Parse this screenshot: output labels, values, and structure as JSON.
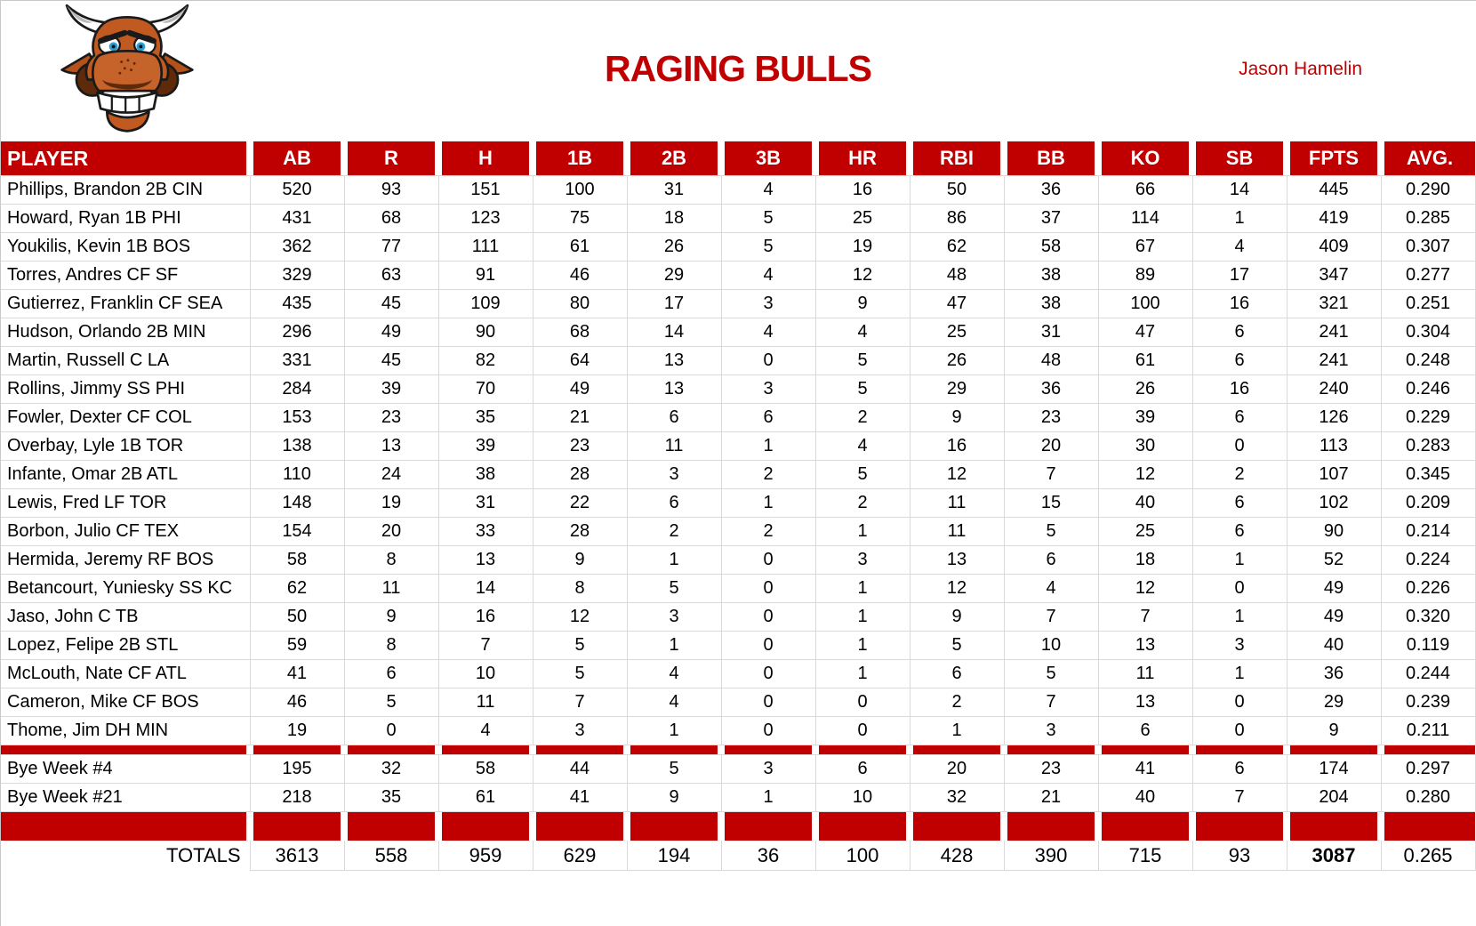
{
  "header": {
    "title": "RAGING BULLS",
    "owner": "Jason Hamelin"
  },
  "colors": {
    "accent_red": "#C00000",
    "grid_gray": "#D9D9D9",
    "header_text": "#FFFFFF"
  },
  "chart_data": {
    "type": "table",
    "title": "RAGING BULLS fantasy baseball team batting statistics"
  },
  "table": {
    "columns": [
      "PLAYER",
      "AB",
      "R",
      "H",
      "1B",
      "2B",
      "3B",
      "HR",
      "RBI",
      "BB",
      "KO",
      "SB",
      "FPTS",
      "AVG."
    ],
    "players": [
      {
        "name": "Phillips, Brandon 2B CIN",
        "stats": [
          "520",
          "93",
          "151",
          "100",
          "31",
          "4",
          "16",
          "50",
          "36",
          "66",
          "14",
          "445",
          "0.290"
        ]
      },
      {
        "name": "Howard, Ryan 1B PHI",
        "stats": [
          "431",
          "68",
          "123",
          "75",
          "18",
          "5",
          "25",
          "86",
          "37",
          "114",
          "1",
          "419",
          "0.285"
        ]
      },
      {
        "name": "Youkilis, Kevin 1B BOS",
        "stats": [
          "362",
          "77",
          "111",
          "61",
          "26",
          "5",
          "19",
          "62",
          "58",
          "67",
          "4",
          "409",
          "0.307"
        ]
      },
      {
        "name": "Torres, Andres CF SF",
        "stats": [
          "329",
          "63",
          "91",
          "46",
          "29",
          "4",
          "12",
          "48",
          "38",
          "89",
          "17",
          "347",
          "0.277"
        ]
      },
      {
        "name": "Gutierrez, Franklin CF SEA",
        "stats": [
          "435",
          "45",
          "109",
          "80",
          "17",
          "3",
          "9",
          "47",
          "38",
          "100",
          "16",
          "321",
          "0.251"
        ]
      },
      {
        "name": "Hudson, Orlando 2B MIN",
        "stats": [
          "296",
          "49",
          "90",
          "68",
          "14",
          "4",
          "4",
          "25",
          "31",
          "47",
          "6",
          "241",
          "0.304"
        ]
      },
      {
        "name": "Martin, Russell C LA",
        "stats": [
          "331",
          "45",
          "82",
          "64",
          "13",
          "0",
          "5",
          "26",
          "48",
          "61",
          "6",
          "241",
          "0.248"
        ]
      },
      {
        "name": "Rollins, Jimmy SS PHI",
        "stats": [
          "284",
          "39",
          "70",
          "49",
          "13",
          "3",
          "5",
          "29",
          "36",
          "26",
          "16",
          "240",
          "0.246"
        ]
      },
      {
        "name": "Fowler, Dexter CF COL",
        "stats": [
          "153",
          "23",
          "35",
          "21",
          "6",
          "6",
          "2",
          "9",
          "23",
          "39",
          "6",
          "126",
          "0.229"
        ]
      },
      {
        "name": "Overbay, Lyle 1B TOR",
        "stats": [
          "138",
          "13",
          "39",
          "23",
          "11",
          "1",
          "4",
          "16",
          "20",
          "30",
          "0",
          "113",
          "0.283"
        ]
      },
      {
        "name": "Infante, Omar 2B ATL",
        "stats": [
          "110",
          "24",
          "38",
          "28",
          "3",
          "2",
          "5",
          "12",
          "7",
          "12",
          "2",
          "107",
          "0.345"
        ]
      },
      {
        "name": "Lewis, Fred LF TOR",
        "stats": [
          "148",
          "19",
          "31",
          "22",
          "6",
          "1",
          "2",
          "11",
          "15",
          "40",
          "6",
          "102",
          "0.209"
        ]
      },
      {
        "name": "Borbon, Julio CF TEX",
        "stats": [
          "154",
          "20",
          "33",
          "28",
          "2",
          "2",
          "1",
          "11",
          "5",
          "25",
          "6",
          "90",
          "0.214"
        ]
      },
      {
        "name": "Hermida, Jeremy RF BOS",
        "stats": [
          "58",
          "8",
          "13",
          "9",
          "1",
          "0",
          "3",
          "13",
          "6",
          "18",
          "1",
          "52",
          "0.224"
        ]
      },
      {
        "name": "Betancourt, Yuniesky SS KC",
        "stats": [
          "62",
          "11",
          "14",
          "8",
          "5",
          "0",
          "1",
          "12",
          "4",
          "12",
          "0",
          "49",
          "0.226"
        ]
      },
      {
        "name": "Jaso, John C TB",
        "stats": [
          "50",
          "9",
          "16",
          "12",
          "3",
          "0",
          "1",
          "9",
          "7",
          "7",
          "1",
          "49",
          "0.320"
        ]
      },
      {
        "name": "Lopez, Felipe 2B STL",
        "stats": [
          "59",
          "8",
          "7",
          "5",
          "1",
          "0",
          "1",
          "5",
          "10",
          "13",
          "3",
          "40",
          "0.119"
        ]
      },
      {
        "name": "McLouth, Nate CF ATL",
        "stats": [
          "41",
          "6",
          "10",
          "5",
          "4",
          "0",
          "1",
          "6",
          "5",
          "11",
          "1",
          "36",
          "0.244"
        ]
      },
      {
        "name": "Cameron, Mike CF BOS",
        "stats": [
          "46",
          "5",
          "11",
          "7",
          "4",
          "0",
          "0",
          "2",
          "7",
          "13",
          "0",
          "29",
          "0.239"
        ]
      },
      {
        "name": "Thome, Jim DH MIN",
        "stats": [
          "19",
          "0",
          "4",
          "3",
          "1",
          "0",
          "0",
          "1",
          "3",
          "6",
          "0",
          "9",
          "0.211"
        ]
      }
    ],
    "bye_weeks": [
      {
        "name": "Bye Week #4",
        "stats": [
          "195",
          "32",
          "58",
          "44",
          "5",
          "3",
          "6",
          "20",
          "23",
          "41",
          "6",
          "174",
          "0.297"
        ]
      },
      {
        "name": "Bye Week #21",
        "stats": [
          "218",
          "35",
          "61",
          "41",
          "9",
          "1",
          "10",
          "32",
          "21",
          "40",
          "7",
          "204",
          "0.280"
        ]
      }
    ],
    "totals": {
      "name": "TOTALS",
      "stats": [
        "3613",
        "558",
        "959",
        "629",
        "194",
        "36",
        "100",
        "428",
        "390",
        "715",
        "93",
        "3087",
        "0.265"
      ]
    }
  }
}
